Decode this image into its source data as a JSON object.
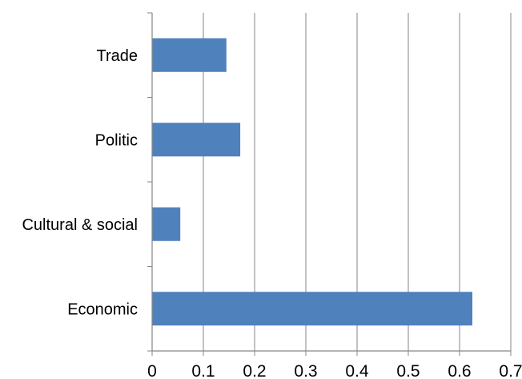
{
  "chart_data": {
    "type": "bar",
    "orientation": "horizontal",
    "title": "",
    "xlabel": "",
    "ylabel": "",
    "categories": [
      "Trade",
      "Politic",
      "Cultural & social",
      "Economic"
    ],
    "values": [
      0.145,
      0.172,
      0.055,
      0.625
    ],
    "xlim": [
      0,
      0.7
    ],
    "xticks": [
      "0",
      "0.1",
      "0.2",
      "0.3",
      "0.4",
      "0.5",
      "0.6",
      "0.7"
    ],
    "bar_color": "#4f81bd",
    "grid": "vertical",
    "legend": "none"
  }
}
